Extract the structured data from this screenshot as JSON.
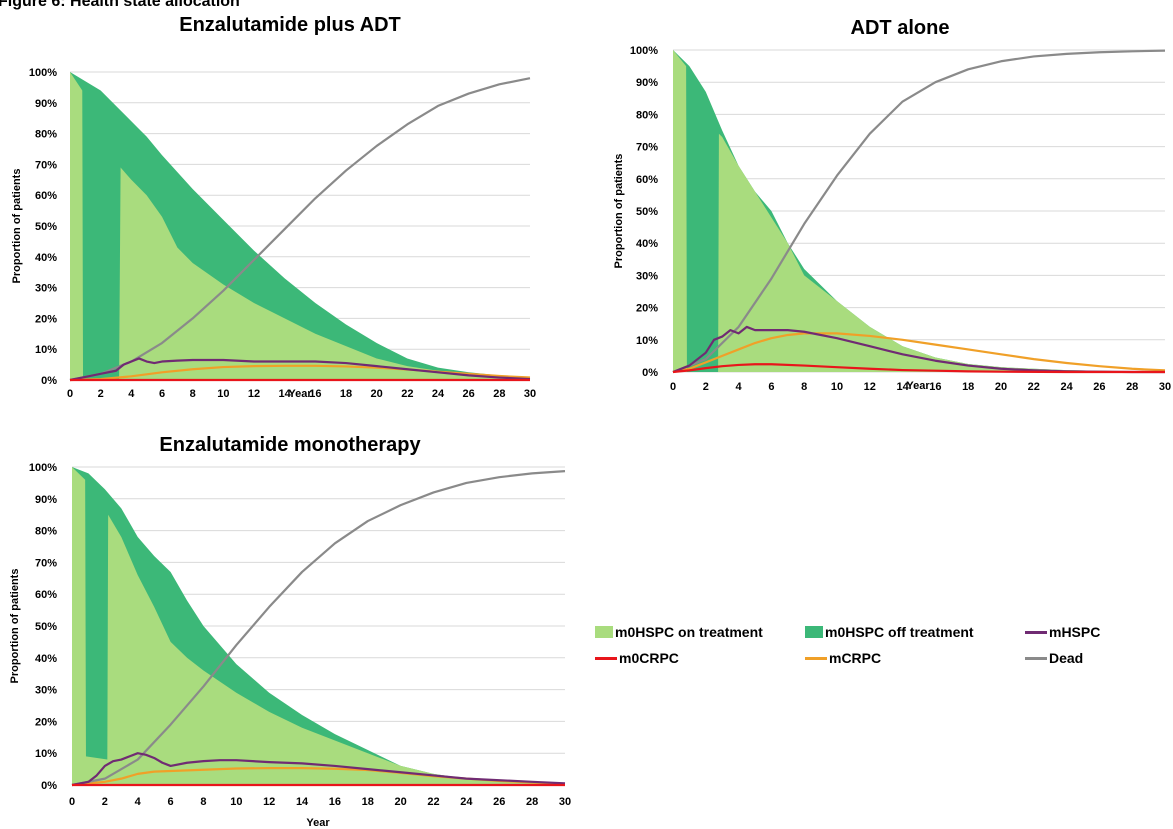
{
  "figure_title": "Figure 6: Health state allocation",
  "colors": {
    "m0HSPC_on": "#a9dc7e",
    "m0HSPC_off": "#3cb878",
    "mHSPC": "#702b73",
    "m0CRPC": "#e8151b",
    "mCRPC": "#f0a028",
    "Dead": "#8a8a8a",
    "grid": "#d9d9d9"
  },
  "legend": {
    "items": [
      {
        "key": "m0HSPC_on",
        "label": "m0HSPC on treatment",
        "kind": "area"
      },
      {
        "key": "m0HSPC_off",
        "label": "m0HSPC off treatment",
        "kind": "area"
      },
      {
        "key": "mHSPC",
        "label": "mHSPC",
        "kind": "line"
      },
      {
        "key": "m0CRPC",
        "label": "m0CRPC",
        "kind": "line"
      },
      {
        "key": "mCRPC",
        "label": "mCRPC",
        "kind": "line"
      },
      {
        "key": "Dead",
        "label": "Dead",
        "kind": "line"
      }
    ]
  },
  "chart_data": [
    {
      "type": "area",
      "title": "Enzalutamide plus ADT",
      "xlabel": "Year",
      "ylabel": "Proportion of patients",
      "xlim": [
        0,
        30
      ],
      "ylim": [
        0,
        100
      ],
      "xticks": [
        "0",
        "2",
        "4",
        "6",
        "8",
        "10",
        "12",
        "14",
        "16",
        "18",
        "20",
        "22",
        "24",
        "26",
        "28",
        "30"
      ],
      "yticks": [
        "0%",
        "10%",
        "20%",
        "30%",
        "40%",
        "50%",
        "60%",
        "70%",
        "80%",
        "90%",
        "100%"
      ],
      "grid": true,
      "series": [
        {
          "key": "total_alive",
          "x": [
            0,
            1,
            2,
            3,
            4,
            5,
            6,
            8,
            10,
            12,
            14,
            16,
            18,
            20,
            22,
            24,
            26,
            28,
            30
          ],
          "values": [
            100,
            97,
            94,
            89,
            84,
            79,
            73,
            62,
            52,
            42,
            33,
            25,
            18,
            12,
            7,
            4,
            2.5,
            1.5,
            1
          ]
        },
        {
          "key": "m0HSPC_on",
          "x": [
            0,
            0.8,
            0.85,
            3.2,
            3.3,
            4,
            5,
            6,
            7,
            8,
            10,
            12,
            14,
            16,
            18,
            20,
            22,
            24,
            26,
            28,
            30
          ],
          "values": [
            100,
            94,
            0,
            0,
            69,
            65,
            60,
            53,
            43,
            38,
            31,
            25,
            20,
            15,
            11,
            7,
            4.5,
            3,
            2,
            1.5,
            1
          ]
        },
        {
          "key": "mHSPC",
          "x": [
            0,
            1,
            2,
            3,
            3.5,
            4,
            4.5,
            5,
            5.5,
            6,
            7,
            8,
            10,
            12,
            14,
            16,
            18,
            20,
            22,
            24,
            26,
            28,
            30
          ],
          "values": [
            0,
            1,
            2,
            3,
            5,
            6,
            7,
            6,
            5.5,
            6,
            6.3,
            6.5,
            6.5,
            6,
            6,
            6,
            5.5,
            4.5,
            3.5,
            2.5,
            1.5,
            0.8,
            0.3
          ]
        },
        {
          "key": "m0CRPC",
          "x": [
            0,
            30
          ],
          "values": [
            0,
            0
          ]
        },
        {
          "key": "mCRPC",
          "x": [
            0,
            2,
            4,
            6,
            8,
            10,
            12,
            14,
            16,
            18,
            20,
            22,
            24,
            26,
            28,
            30
          ],
          "values": [
            0,
            0.3,
            1.2,
            2.5,
            3.5,
            4.2,
            4.5,
            4.6,
            4.6,
            4.4,
            4,
            3.4,
            2.7,
            2,
            1.3,
            0.8
          ]
        },
        {
          "key": "Dead",
          "x": [
            0,
            2,
            4,
            6,
            8,
            10,
            12,
            14,
            16,
            18,
            20,
            22,
            24,
            26,
            28,
            30
          ],
          "values": [
            0,
            2,
            6,
            12,
            20,
            29,
            39,
            49,
            59,
            68,
            76,
            83,
            89,
            93,
            96,
            98
          ]
        }
      ]
    },
    {
      "type": "area",
      "title": "ADT alone",
      "xlabel": "Year",
      "ylabel": "Proportion of patients",
      "xlim": [
        0,
        30
      ],
      "ylim": [
        0,
        100
      ],
      "xticks": [
        "0",
        "2",
        "4",
        "6",
        "8",
        "10",
        "12",
        "14",
        "16",
        "18",
        "20",
        "22",
        "24",
        "26",
        "28",
        "30"
      ],
      "yticks": [
        "0%",
        "10%",
        "20%",
        "30%",
        "40%",
        "50%",
        "60%",
        "70%",
        "80%",
        "90%",
        "100%"
      ],
      "grid": true,
      "series": [
        {
          "key": "total_alive",
          "x": [
            0,
            1,
            2,
            3,
            4,
            5,
            6,
            7,
            8,
            10,
            12,
            14,
            16,
            18,
            20,
            22,
            24,
            26,
            28,
            30
          ],
          "values": [
            100,
            95,
            87,
            75,
            64,
            56,
            50,
            40,
            32,
            22,
            14,
            8,
            4.5,
            2.5,
            1.5,
            1,
            0.6,
            0.4,
            0.2,
            0.1
          ]
        },
        {
          "key": "m0HSPC_on",
          "x": [
            0,
            0.8,
            0.85,
            2.75,
            2.8,
            3,
            4,
            5,
            6,
            7,
            8,
            10,
            12,
            14,
            16,
            18,
            20,
            22,
            24,
            26,
            28,
            30
          ],
          "values": [
            100,
            95,
            0,
            0,
            74,
            73,
            64,
            56,
            48,
            40,
            30,
            22,
            14,
            8,
            4.5,
            2.5,
            1.5,
            1,
            0.6,
            0.4,
            0.2,
            0.1
          ]
        },
        {
          "key": "mHSPC",
          "x": [
            0,
            1,
            2,
            2.5,
            3,
            3.5,
            4,
            4.5,
            5,
            5.5,
            6,
            7,
            8,
            10,
            12,
            14,
            16,
            18,
            20,
            22,
            24,
            26,
            28,
            30
          ],
          "values": [
            0,
            2,
            6,
            10,
            11,
            13,
            12,
            14,
            13,
            13,
            13,
            13,
            12.5,
            10.5,
            8,
            5.5,
            3.5,
            2,
            1,
            0.5,
            0.2,
            0.1,
            0,
            0
          ]
        },
        {
          "key": "m0CRPC",
          "x": [
            0,
            1,
            2,
            3,
            4,
            5,
            6,
            8,
            10,
            12,
            14,
            16,
            18,
            20,
            24,
            30
          ],
          "values": [
            0,
            0.5,
            1.2,
            1.8,
            2.2,
            2.4,
            2.4,
            2,
            1.5,
            1,
            0.6,
            0.4,
            0.2,
            0.1,
            0,
            0
          ]
        },
        {
          "key": "mCRPC",
          "x": [
            0,
            1,
            2,
            3,
            4,
            5,
            6,
            7,
            8,
            9,
            10,
            12,
            14,
            16,
            18,
            20,
            22,
            24,
            26,
            28,
            30
          ],
          "values": [
            0,
            1,
            3,
            5,
            7,
            9,
            10.5,
            11.5,
            12,
            12,
            12,
            11.2,
            10,
            8.5,
            7,
            5.5,
            4,
            2.8,
            1.8,
            1,
            0.5
          ]
        },
        {
          "key": "Dead",
          "x": [
            0,
            2,
            4,
            6,
            8,
            10,
            12,
            14,
            16,
            18,
            20,
            22,
            24,
            26,
            28,
            30
          ],
          "values": [
            0,
            4,
            14,
            29,
            46,
            61,
            74,
            84,
            90,
            94,
            96.5,
            98,
            98.8,
            99.3,
            99.6,
            99.8
          ]
        }
      ]
    },
    {
      "type": "area",
      "title": "Enzalutamide monotherapy",
      "xlabel": "Year",
      "ylabel": "Proportion of patients",
      "xlim": [
        0,
        30
      ],
      "ylim": [
        0,
        100
      ],
      "xticks": [
        "0",
        "2",
        "4",
        "6",
        "8",
        "10",
        "12",
        "14",
        "16",
        "18",
        "20",
        "22",
        "24",
        "26",
        "28",
        "30"
      ],
      "yticks": [
        "0%",
        "10%",
        "20%",
        "30%",
        "40%",
        "50%",
        "60%",
        "70%",
        "80%",
        "90%",
        "100%"
      ],
      "grid": true,
      "series": [
        {
          "key": "total_alive",
          "x": [
            0,
            1,
            2,
            3,
            4,
            5,
            6,
            7,
            8,
            10,
            12,
            14,
            16,
            18,
            20,
            22,
            24,
            26,
            28,
            30
          ],
          "values": [
            100,
            98,
            93,
            87,
            78,
            72,
            67,
            58,
            50,
            38,
            29,
            22,
            16,
            11,
            6,
            3.5,
            2,
            1.2,
            0.8,
            0.5
          ]
        },
        {
          "key": "m0HSPC_on",
          "x": [
            0,
            0.8,
            0.85,
            2.15,
            2.2,
            3,
            4,
            5,
            6,
            7,
            8,
            10,
            12,
            14,
            16,
            18,
            20,
            22,
            24,
            26,
            28,
            30
          ],
          "values": [
            100,
            96,
            9,
            8,
            85,
            78,
            66,
            56,
            45,
            40,
            36,
            29,
            23,
            18,
            14,
            10,
            6,
            3.5,
            2,
            1.2,
            0.8,
            0.5
          ]
        },
        {
          "key": "mHSPC",
          "x": [
            0,
            1,
            1.5,
            2,
            2.5,
            3,
            3.5,
            4,
            4.5,
            5,
            5.5,
            6,
            7,
            8,
            9,
            10,
            12,
            14,
            16,
            18,
            20,
            22,
            24,
            26,
            28,
            30
          ],
          "values": [
            0,
            1,
            3,
            6,
            7.5,
            8,
            9,
            10,
            9.5,
            8.5,
            7,
            6,
            7,
            7.5,
            7.8,
            7.8,
            7.2,
            6.8,
            6,
            5,
            4,
            3,
            2,
            1.5,
            1,
            0.5
          ]
        },
        {
          "key": "m0CRPC",
          "x": [
            0,
            30
          ],
          "values": [
            0,
            0
          ]
        },
        {
          "key": "mCRPC",
          "x": [
            0,
            2,
            3,
            4,
            5,
            6,
            8,
            10,
            12,
            14,
            16,
            18,
            20,
            22,
            24,
            26,
            28,
            30
          ],
          "values": [
            0,
            1,
            2,
            3.5,
            4.2,
            4.4,
            4.8,
            5.2,
            5.3,
            5.3,
            5.1,
            4.7,
            3.8,
            2.8,
            2,
            1.3,
            0.8,
            0.4
          ]
        },
        {
          "key": "Dead",
          "x": [
            0,
            2,
            4,
            6,
            8,
            10,
            12,
            14,
            16,
            18,
            20,
            22,
            24,
            26,
            28,
            30
          ],
          "values": [
            0,
            2,
            8,
            19,
            31,
            44,
            56,
            67,
            76,
            83,
            88,
            92,
            95,
            96.8,
            98,
            98.7
          ]
        }
      ]
    }
  ]
}
